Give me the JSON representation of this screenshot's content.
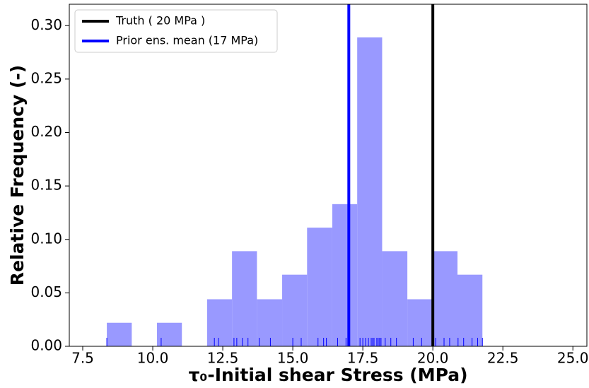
{
  "chart_data": {
    "type": "histogram",
    "xlabel": "τ₀-Initial shear Stress (MPa)",
    "ylabel": "Relative Frequency (-)",
    "bins": [
      8.36,
      9.25,
      10.15,
      11.04,
      11.94,
      12.83,
      13.72,
      14.62,
      15.51,
      16.41,
      17.3,
      18.19,
      19.09,
      19.98,
      20.88,
      21.77
    ],
    "values": [
      0.022,
      0,
      0.022,
      0,
      0.044,
      0.089,
      0.044,
      0.067,
      0.111,
      0.133,
      0.289,
      0.089,
      0.044,
      0.089,
      0.067
    ],
    "color": "#9999ff",
    "lines": [
      {
        "name": "Truth ( 20 MPa )",
        "x": 20,
        "color": "#000000"
      },
      {
        "name": "Prior ens. mean (17 MPa)",
        "x": 17,
        "color": "#0000ff"
      }
    ],
    "rug": {
      "color": "#0000ff",
      "values": [
        8.36,
        10.3,
        12.2,
        12.35,
        12.9,
        13.0,
        13.2,
        13.4,
        13.8,
        14.2,
        15.0,
        15.3,
        15.9,
        16.1,
        16.2,
        16.6,
        16.9,
        17.0,
        17.4,
        17.5,
        17.6,
        17.7,
        17.8,
        17.85,
        17.9,
        18.0,
        18.05,
        18.1,
        18.15,
        18.3,
        18.5,
        18.7,
        19.3,
        19.6,
        20.1,
        20.4,
        20.6,
        20.9,
        21.1,
        21.4,
        21.6,
        21.77
      ]
    },
    "xlim": [
      7.02,
      25.5
    ],
    "ylim": [
      0,
      0.32
    ],
    "xticks": [
      {
        "value": 7.5,
        "label": "7.5"
      },
      {
        "value": 10,
        "label": "10.0"
      },
      {
        "value": 12.5,
        "label": "12.5"
      },
      {
        "value": 15,
        "label": "15.0"
      },
      {
        "value": 17.5,
        "label": "17.5"
      },
      {
        "value": 20,
        "label": "20.0"
      },
      {
        "value": 22.5,
        "label": "22.5"
      },
      {
        "value": 25,
        "label": "25.0"
      }
    ],
    "yticks": [
      {
        "value": 0,
        "label": "0.00"
      },
      {
        "value": 0.05,
        "label": "0.05"
      },
      {
        "value": 0.1,
        "label": "0.10"
      },
      {
        "value": 0.15,
        "label": "0.15"
      },
      {
        "value": 0.2,
        "label": "0.20"
      },
      {
        "value": 0.25,
        "label": "0.25"
      },
      {
        "value": 0.3,
        "label": "0.30"
      }
    ],
    "legend": "upper left"
  }
}
